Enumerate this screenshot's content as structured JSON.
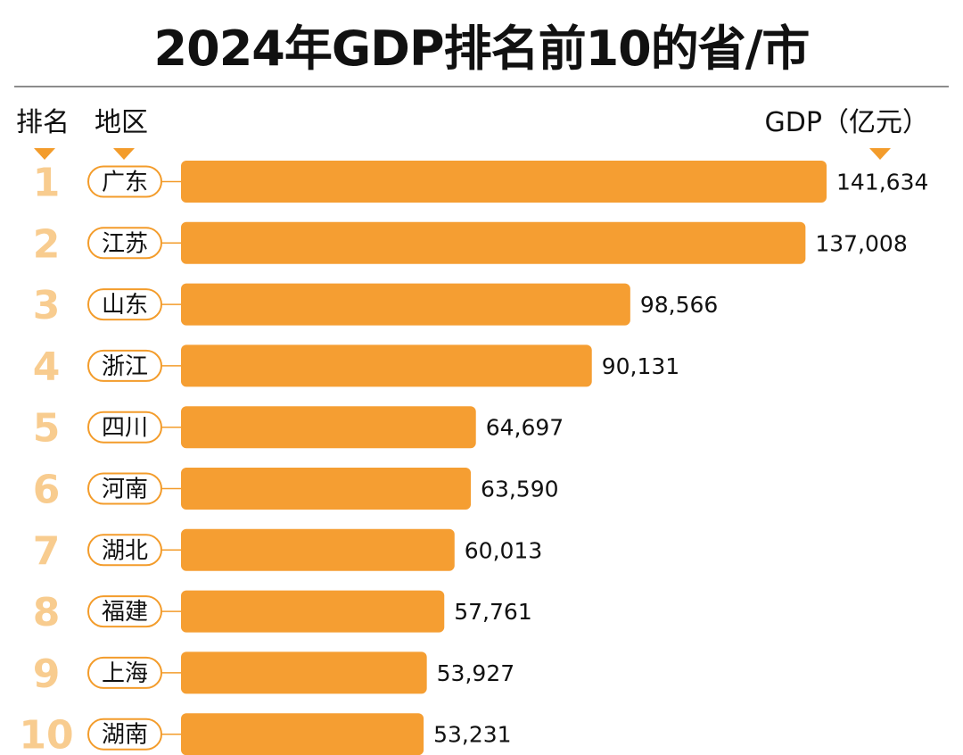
{
  "title": "2024年GDP排名前10的省/市",
  "headers": {
    "rank": "排名",
    "region": "地区",
    "value": "GDP（亿元）"
  },
  "colors": {
    "bar": "#f59e32",
    "rank_number": "#f8cc8f",
    "accent": "#f39c2b"
  },
  "chart_data": {
    "type": "bar",
    "orientation": "horizontal",
    "title": "2024年GDP排名前10的省/市",
    "categories": [
      "广东",
      "江苏",
      "山东",
      "浙江",
      "四川",
      "河南",
      "湖北",
      "福建",
      "上海",
      "湖南"
    ],
    "ranks": [
      "1",
      "2",
      "3",
      "4",
      "5",
      "6",
      "7",
      "8",
      "9",
      "10"
    ],
    "values": [
      141634,
      137008,
      98566,
      90131,
      64697,
      63590,
      60013,
      57761,
      53927,
      53231
    ],
    "value_labels": [
      "141,634",
      "137,008",
      "98,566",
      "90,131",
      "64,697",
      "63,590",
      "60,013",
      "57,761",
      "53,927",
      "53,231"
    ],
    "xlabel": "",
    "ylabel": "",
    "grid": false,
    "legend": "none"
  }
}
